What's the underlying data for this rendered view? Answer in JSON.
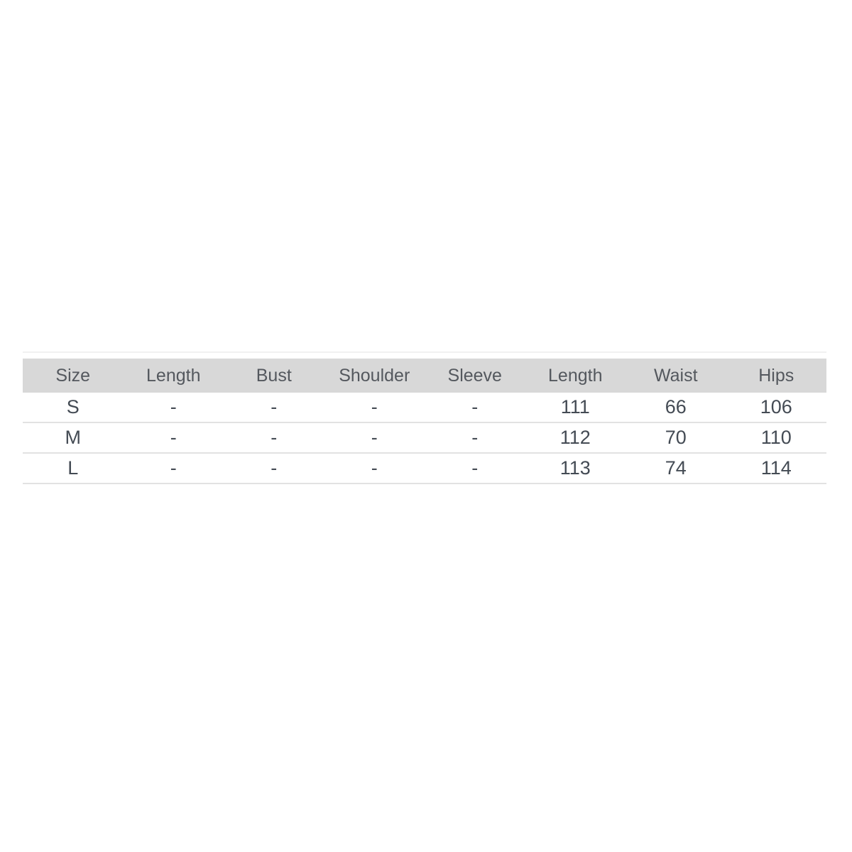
{
  "page": {
    "background_color": "#ffffff"
  },
  "colors": {
    "header_background": "#d8d8d8",
    "header_text": "#54585e",
    "body_text": "#444b54",
    "row_divider": "#e2e2e2",
    "top_rule": "#f1f1f1"
  },
  "chart_data": {
    "type": "table",
    "columns": [
      "Size",
      "Length",
      "Bust",
      "Shoulder",
      "Sleeve",
      "Length",
      "Waist",
      "Hips"
    ],
    "rows": [
      [
        "S",
        "-",
        "-",
        "-",
        "-",
        "111",
        "66",
        "106"
      ],
      [
        "M",
        "-",
        "-",
        "-",
        "-",
        "112",
        "70",
        "110"
      ],
      [
        "L",
        "-",
        "-",
        "-",
        "-",
        "113",
        "74",
        "114"
      ]
    ]
  }
}
